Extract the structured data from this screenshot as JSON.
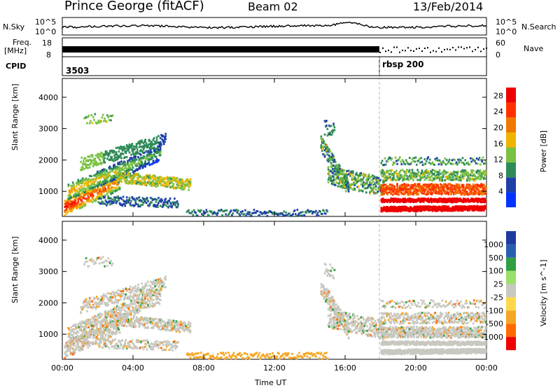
{
  "header": {
    "station": "Prince George (fitACF)",
    "beam": "Beam 02",
    "date": "13/Feb/2014"
  },
  "strips": {
    "nsky_label": "N.Sky",
    "nsearch_label": "N.Search",
    "nsky_ticks": [
      "10^5",
      "10^0"
    ],
    "nsearch_ticks": [
      "10^5",
      "10^0"
    ],
    "freq_label_1": "Freq.",
    "freq_label_2": "[MHz]",
    "freq_ticks": [
      "18",
      "8"
    ],
    "nave_label": "Nave",
    "nave_ticks": [
      "60",
      "0"
    ],
    "cpid_label": "CPID",
    "cpid_values": [
      "3503",
      "rbsp 200"
    ]
  },
  "colors": {
    "power_scale": [
      "#0033ff",
      "#1f3fa8",
      "#2e8b57",
      "#7ac142",
      "#f0b400",
      "#f07800",
      "#ff3000",
      "#ee0000"
    ],
    "velocity_scale": [
      "#ee0000",
      "#ff6a00",
      "#f5a623",
      "#ffd84a",
      "#c8c8c0",
      "#9be06a",
      "#2f9f3f",
      "#2a5fb0",
      "#203aa0"
    ],
    "ground_scatter": "#c8c8c0"
  },
  "chart_data": [
    {
      "type": "heatmap",
      "title": "",
      "ylabel": "Slant Range [km]",
      "xlabel": "",
      "xlim": [
        "00:00",
        "00:00"
      ],
      "x_ticks": [
        "00:00",
        "04:00",
        "08:00",
        "12:00",
        "16:00",
        "20:00",
        "00:00"
      ],
      "ylim": [
        200,
        4600
      ],
      "y_ticks": [
        1000,
        2000,
        3000,
        4000
      ],
      "colorbar": {
        "label": "Power [dB]",
        "ticks": [
          4,
          8,
          12,
          16,
          20,
          24,
          28
        ],
        "range": [
          0,
          30
        ]
      },
      "series": [
        {
          "name": "",
          "description_points": [
            {
              "t_hr": 0.5,
              "range_km": 600,
              "value": 28
            },
            {
              "t_hr": 1.5,
              "range_km": 900,
              "value": 24
            },
            {
              "t_hr": 3.0,
              "range_km": 1300,
              "value": 16
            },
            {
              "t_hr": 5.0,
              "range_km": 1600,
              "value": 8
            },
            {
              "t_hr": 15.0,
              "range_km": 1900,
              "value": 8
            },
            {
              "t_hr": 18.5,
              "range_km": 900,
              "value": 24
            },
            {
              "t_hr": 20.5,
              "range_km": 450,
              "value": 28
            },
            {
              "t_hr": 22.5,
              "range_km": 1200,
              "value": 20
            }
          ]
        }
      ]
    },
    {
      "type": "heatmap",
      "title": "",
      "ylabel": "Slant Range [km]",
      "xlabel": "Time UT",
      "xlim": [
        "00:00",
        "00:00"
      ],
      "x_ticks": [
        "00:00",
        "04:00",
        "08:00",
        "12:00",
        "16:00",
        "20:00",
        "00:00"
      ],
      "ylim": [
        200,
        4600
      ],
      "y_ticks": [
        1000,
        2000,
        3000,
        4000
      ],
      "colorbar": {
        "label": "Velocity [m s^-1]",
        "ticks": [
          1000,
          500,
          100,
          25,
          -25,
          -100,
          -500,
          -1000
        ],
        "range": [
          -1000,
          1000
        ]
      },
      "series": [
        {
          "name": "",
          "description_points": [
            {
              "t_hr": 1.0,
              "range_km": 1200,
              "value": 0
            },
            {
              "t_hr": 5.5,
              "range_km": 1100,
              "value": -100
            },
            {
              "t_hr": 15.3,
              "range_km": 1900,
              "value": 0
            },
            {
              "t_hr": 20.0,
              "range_km": 1000,
              "value": 0
            }
          ]
        }
      ]
    }
  ]
}
